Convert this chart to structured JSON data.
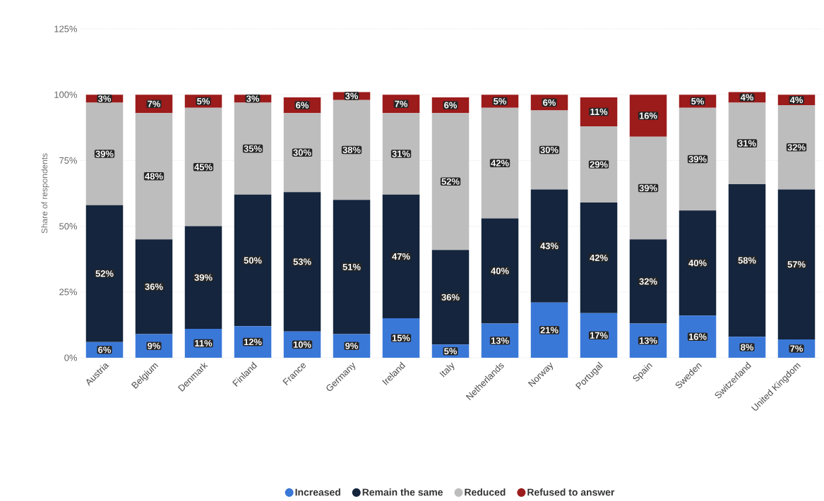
{
  "chart_data": {
    "type": "bar",
    "stacked": true,
    "ylabel": "Share of respondents",
    "categories": [
      "Austria",
      "Belgium",
      "Denmark",
      "Finland",
      "France",
      "Germany",
      "Ireland",
      "Italy",
      "Netherlands",
      "Norway",
      "Portugal",
      "Spain",
      "Sweden",
      "Switzerland",
      "United Kingdom"
    ],
    "series": [
      {
        "name": "Increased",
        "color": "#3a78d8",
        "values": [
          6,
          9,
          11,
          12,
          10,
          9,
          15,
          5,
          13,
          21,
          17,
          13,
          16,
          8,
          7
        ],
        "value_labels": [
          "6%",
          "9%",
          "11%",
          "12%",
          "10%",
          "9%",
          "15%",
          "5%",
          "13%",
          "21%",
          "17%",
          "13%",
          "16%",
          "8%",
          "7%"
        ]
      },
      {
        "name": "Remain the same",
        "color": "#14253d",
        "values": [
          52,
          36,
          39,
          50,
          53,
          51,
          47,
          36,
          40,
          43,
          42,
          32,
          40,
          58,
          57
        ],
        "value_labels": [
          "52%",
          "36%",
          "39%",
          "50%",
          "53%",
          "51%",
          "47%",
          "36%",
          "40%",
          "43%",
          "42%",
          "32%",
          "40%",
          "58%",
          "57%"
        ]
      },
      {
        "name": "Reduced",
        "color": "#bdbdbd",
        "values": [
          39,
          48,
          45,
          35,
          30,
          38,
          31,
          52,
          42,
          30,
          29,
          39,
          39,
          31,
          32
        ],
        "value_labels": [
          "39%",
          "48%",
          "45%",
          "35%",
          "30%",
          "38%",
          "31%",
          "52%",
          "42%",
          "30%",
          "29%",
          "39%",
          "39%",
          "31%",
          "32%"
        ]
      },
      {
        "name": "Refused to answer",
        "color": "#9c1b1b",
        "values": [
          3,
          7,
          5,
          3,
          6,
          3,
          7,
          6,
          5,
          6,
          11,
          16,
          5,
          4,
          4
        ],
        "value_labels": [
          "3%",
          "7%",
          "5%",
          "3%",
          "6%",
          "3%",
          "7%",
          "6%",
          "5%",
          "6%",
          "11%",
          "16%",
          "5%",
          "4%",
          "4%"
        ]
      }
    ],
    "ylim": [
      0,
      125
    ],
    "yticks": [
      {
        "value": 0,
        "label": "0%"
      },
      {
        "value": 25,
        "label": "25%"
      },
      {
        "value": 50,
        "label": "50%"
      },
      {
        "value": 75,
        "label": "75%"
      },
      {
        "value": 100,
        "label": "100%"
      },
      {
        "value": 125,
        "label": "125%"
      }
    ],
    "grid": "y",
    "legend": "bottom"
  }
}
